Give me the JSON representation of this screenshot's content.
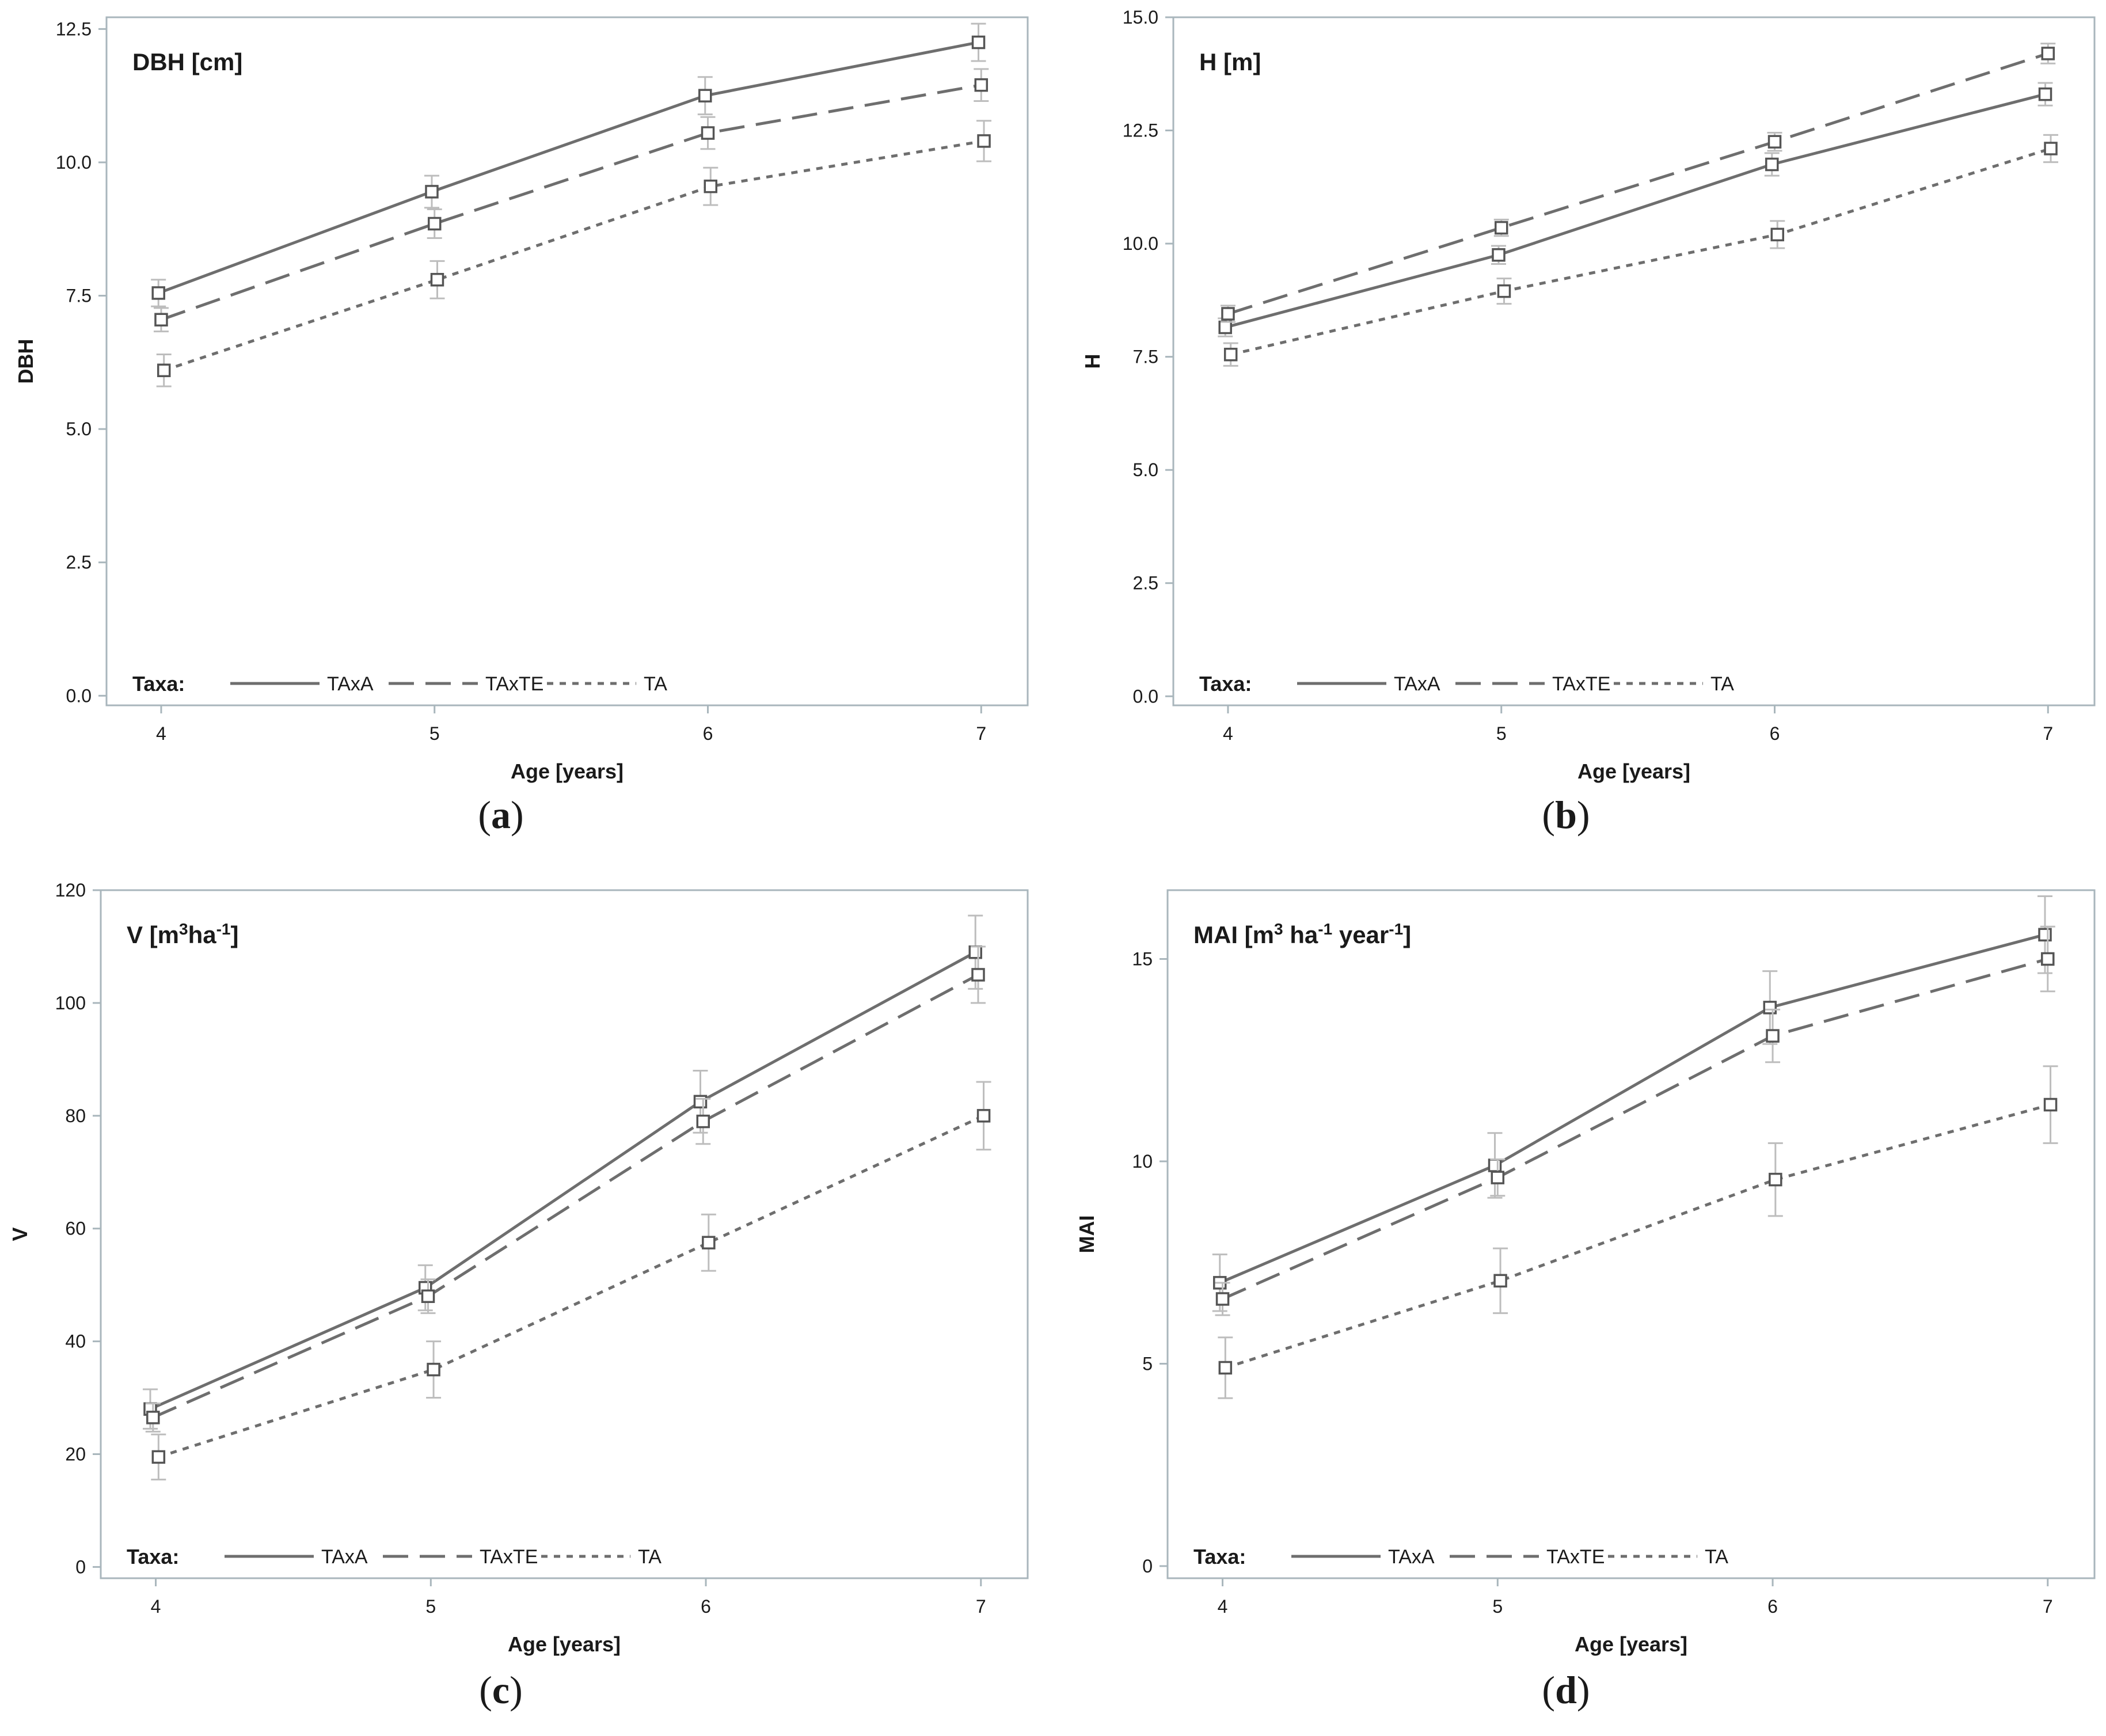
{
  "colors": {
    "line": "#6e6e6e",
    "frame": "#a9b6bc",
    "errorbar": "#bdbdbd",
    "marker": "#555555",
    "text": "#1a1a1a"
  },
  "chart_data": [
    {
      "type": "line",
      "panel": "(a)",
      "panel_letter": "a",
      "title": "DBH [cm]",
      "xlabel": "Age [years]",
      "ylabel": "DBH",
      "x": [
        4,
        5,
        6,
        7
      ],
      "xticks": [
        "4",
        "5",
        "6",
        "7"
      ],
      "xlim": [
        3.8,
        7.17
      ],
      "ylim": [
        -0.18,
        12.72
      ],
      "yticks": [
        "0.0",
        "2.5",
        "5.0",
        "7.5",
        "10.0",
        "12.5"
      ],
      "ytick_values": [
        0,
        2.5,
        5,
        7.5,
        10,
        12.5
      ],
      "legend_title": "Taxa:",
      "legend_position": "bottom-left inside",
      "series": [
        {
          "name": "TAxA",
          "style": "solid",
          "values": [
            7.55,
            9.45,
            11.25,
            12.25
          ],
          "errors": [
            0.25,
            0.3,
            0.35,
            0.35
          ],
          "x_offset": -0.01
        },
        {
          "name": "TAxTE",
          "style": "dashed",
          "values": [
            7.05,
            8.85,
            10.55,
            11.45
          ],
          "errors": [
            0.22,
            0.27,
            0.3,
            0.3
          ],
          "x_offset": 0.0
        },
        {
          "name": "TA",
          "style": "dotted",
          "values": [
            6.1,
            7.8,
            9.55,
            10.4
          ],
          "errors": [
            0.3,
            0.35,
            0.35,
            0.38
          ],
          "x_offset": 0.01
        }
      ]
    },
    {
      "type": "line",
      "panel": "(b)",
      "panel_letter": "b",
      "title": "H [m]",
      "xlabel": "Age [years]",
      "ylabel": "H",
      "x": [
        4,
        5,
        6,
        7
      ],
      "xticks": [
        "4",
        "5",
        "6",
        "7"
      ],
      "xlim": [
        3.8,
        7.17
      ],
      "ylim": [
        -0.2,
        15.0
      ],
      "yticks": [
        "0.0",
        "2.5",
        "5.0",
        "7.5",
        "10.0",
        "12.5",
        "15.0"
      ],
      "ytick_values": [
        0,
        2.5,
        5,
        7.5,
        10,
        12.5,
        15
      ],
      "legend_title": "Taxa:",
      "legend_position": "bottom-left inside",
      "series": [
        {
          "name": "TAxA",
          "style": "solid",
          "values": [
            8.15,
            9.75,
            11.75,
            13.3
          ],
          "errors": [
            0.2,
            0.2,
            0.25,
            0.25
          ],
          "x_offset": -0.01
        },
        {
          "name": "TAxTE",
          "style": "dashed",
          "values": [
            8.45,
            10.35,
            12.25,
            14.2
          ],
          "errors": [
            0.18,
            0.18,
            0.2,
            0.22
          ],
          "x_offset": 0.0
        },
        {
          "name": "TA",
          "style": "dotted",
          "values": [
            7.55,
            8.95,
            10.2,
            12.1
          ],
          "errors": [
            0.25,
            0.28,
            0.3,
            0.3
          ],
          "x_offset": 0.01
        }
      ]
    },
    {
      "type": "line",
      "panel": "(c)",
      "panel_letter": "c",
      "title": "V [m",
      "title_sup1": "3",
      "title_mid": "ha",
      "title_sup2": "-1",
      "title_end": "]",
      "xlabel": "Age [years]",
      "ylabel": "V",
      "x": [
        4,
        5,
        6,
        7
      ],
      "xticks": [
        "4",
        "5",
        "6",
        "7"
      ],
      "xlim": [
        3.8,
        7.17
      ],
      "ylim": [
        -2,
        120
      ],
      "yticks": [
        "0",
        "20",
        "40",
        "60",
        "80",
        "100",
        "120"
      ],
      "ytick_values": [
        0,
        20,
        40,
        60,
        80,
        100,
        120
      ],
      "legend_title": "Taxa:",
      "legend_position": "bottom-left inside",
      "series": [
        {
          "name": "TAxA",
          "style": "solid",
          "values": [
            28,
            49.5,
            82.5,
            109
          ],
          "errors": [
            3.5,
            4.0,
            5.5,
            6.5
          ],
          "x_offset": -0.02
        },
        {
          "name": "TAxTE",
          "style": "dashed",
          "values": [
            26.5,
            48,
            79,
            105
          ],
          "errors": [
            2.5,
            3.0,
            4.0,
            5.0
          ],
          "x_offset": -0.01
        },
        {
          "name": "TA",
          "style": "dotted",
          "values": [
            19.5,
            35,
            57.5,
            80
          ],
          "errors": [
            4.0,
            5.0,
            5.0,
            6.0
          ],
          "x_offset": 0.01
        }
      ]
    },
    {
      "type": "line",
      "panel": "(d)",
      "panel_letter": "d",
      "title": "MAI [m",
      "title_sup1": "3",
      "title_mid": " ha",
      "title_sup2": "-1",
      "title_mid2": " year",
      "title_sup3": "-1",
      "title_end": "]",
      "xlabel": "Age [years]",
      "ylabel": "MAI",
      "x": [
        4,
        5,
        6,
        7
      ],
      "xticks": [
        "4",
        "5",
        "6",
        "7"
      ],
      "xlim": [
        3.8,
        7.17
      ],
      "ylim": [
        -0.3,
        16.7
      ],
      "yticks": [
        "0",
        "5",
        "10",
        "15"
      ],
      "ytick_values": [
        0,
        5,
        10,
        15
      ],
      "legend_title": "Taxa:",
      "legend_position": "bottom-left inside",
      "series": [
        {
          "name": "TAxA",
          "style": "solid",
          "values": [
            7.0,
            9.9,
            13.8,
            15.6
          ],
          "errors": [
            0.7,
            0.8,
            0.9,
            0.95
          ],
          "x_offset": -0.01
        },
        {
          "name": "TAxTE",
          "style": "dashed",
          "values": [
            6.6,
            9.6,
            13.1,
            15.0
          ],
          "errors": [
            0.4,
            0.45,
            0.65,
            0.8
          ],
          "x_offset": 0.0
        },
        {
          "name": "TA",
          "style": "dotted",
          "values": [
            4.9,
            7.05,
            9.55,
            11.4
          ],
          "errors": [
            0.75,
            0.8,
            0.9,
            0.95
          ],
          "x_offset": 0.01
        }
      ]
    }
  ]
}
